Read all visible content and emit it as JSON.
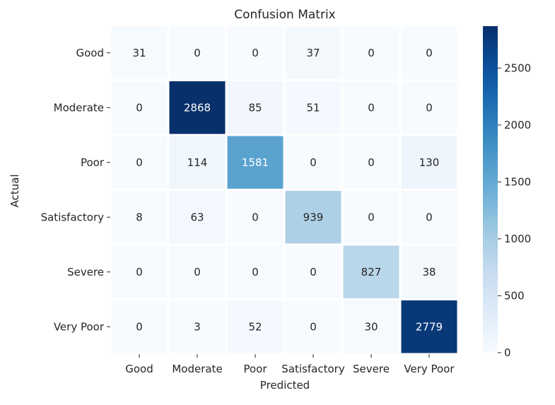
{
  "chart_data": {
    "type": "heatmap",
    "title": "Confusion Matrix",
    "xlabel": "Predicted",
    "ylabel": "Actual",
    "x_categories": [
      "Good",
      "Moderate",
      "Poor",
      "Satisfactory",
      "Severe",
      "Very Poor"
    ],
    "y_categories": [
      "Good",
      "Moderate",
      "Poor",
      "Satisfactory",
      "Severe",
      "Very Poor"
    ],
    "values": [
      [
        31,
        0,
        0,
        37,
        0,
        0
      ],
      [
        0,
        2868,
        85,
        51,
        0,
        0
      ],
      [
        0,
        114,
        1581,
        0,
        0,
        130
      ],
      [
        8,
        63,
        0,
        939,
        0,
        0
      ],
      [
        0,
        0,
        0,
        0,
        827,
        38
      ],
      [
        0,
        3,
        52,
        0,
        30,
        2779
      ]
    ],
    "colormap": "Blues",
    "vmin": 0,
    "vmax": 2868,
    "colorbar_ticks": [
      0,
      500,
      1000,
      1500,
      2000,
      2500
    ]
  }
}
